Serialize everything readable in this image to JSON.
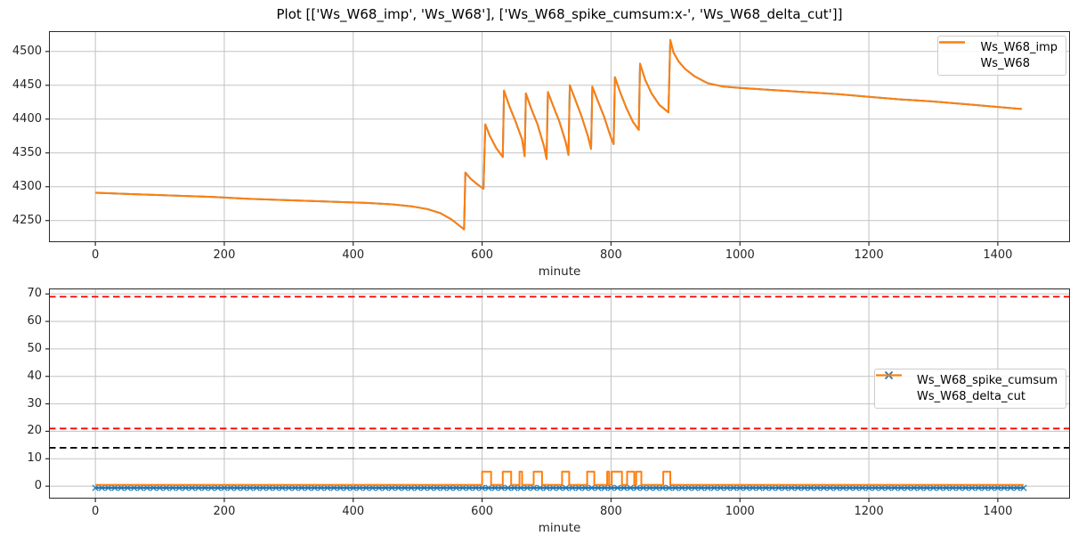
{
  "figure": {
    "title": "Plot [['Ws_W68_imp', 'Ws_W68'], ['Ws_W68_spike_cumsum:x-', 'Ws_W68_delta_cut']]"
  },
  "colors": {
    "blue": "#1f77b4",
    "orange": "#ff7f0e",
    "red": "#ff0000",
    "black": "#000000",
    "grid": "#c2c2c2",
    "spine": "#2a2a2a"
  },
  "chart_data": [
    {
      "type": "line",
      "xlabel": "minute",
      "xlim": [
        -72,
        1512
      ],
      "ylim": [
        4218,
        4530
      ],
      "xticks": [
        0,
        200,
        400,
        600,
        800,
        1000,
        1200,
        1400
      ],
      "yticks": [
        4250,
        4300,
        4350,
        4400,
        4450,
        4500
      ],
      "grid": true,
      "legend_position": "upper right",
      "points": {
        "main": {
          "x": [
            0,
            60,
            120,
            180,
            240,
            300,
            360,
            420,
            460,
            490,
            515,
            535,
            552,
            564,
            572,
            574,
            582,
            592,
            602,
            605,
            612,
            622,
            632,
            634,
            642,
            652,
            662,
            666,
            668,
            676,
            686,
            696,
            700,
            702,
            710,
            720,
            730,
            734,
            736,
            744,
            754,
            764,
            769,
            771,
            779,
            789,
            799,
            804,
            806,
            814,
            824,
            834,
            843,
            845,
            853,
            863,
            875,
            889,
            892,
            897,
            905,
            915,
            930,
            950,
            975,
            1000,
            1050,
            1100,
            1150,
            1200,
            1250,
            1300,
            1350,
            1400,
            1437
          ],
          "y": [
            4291,
            4289,
            4287,
            4285,
            4282,
            4280,
            4278,
            4276,
            4274,
            4271,
            4267,
            4261,
            4252,
            4243,
            4237,
            4321,
            4312,
            4304,
            4297,
            4392,
            4375,
            4357,
            4344,
            4442,
            4420,
            4396,
            4370,
            4345,
            4438,
            4416,
            4392,
            4360,
            4341,
            4440,
            4420,
            4396,
            4365,
            4347,
            4450,
            4430,
            4405,
            4375,
            4356,
            4448,
            4428,
            4404,
            4375,
            4363,
            4462,
            4440,
            4416,
            4396,
            4384,
            4482,
            4458,
            4438,
            4421,
            4410,
            4517,
            4498,
            4485,
            4474,
            4463,
            4453,
            4448,
            4446,
            4443,
            4440,
            4437,
            4433,
            4429,
            4426,
            4422,
            4418,
            4415
          ]
        }
      },
      "series": [
        {
          "name": "Ws_W68_imp",
          "color": "#1f77b4",
          "kind": "points",
          "points_ref": "main"
        },
        {
          "name": "Ws_W68",
          "color": "#ff7f0e",
          "kind": "points",
          "points_ref": "main"
        }
      ]
    },
    {
      "type": "line",
      "xlabel": "minute",
      "xlim": [
        -72,
        1512
      ],
      "ylim": [
        -4.5,
        72
      ],
      "xticks": [
        0,
        200,
        400,
        600,
        800,
        1000,
        1200,
        1400
      ],
      "yticks": [
        0,
        10,
        20,
        30,
        40,
        50,
        60,
        70
      ],
      "grid": true,
      "legend_position": "center right",
      "thresholds": [
        {
          "y": 69,
          "color": "#ff0000",
          "style": "dashed"
        },
        {
          "y": 21,
          "color": "#ff0000",
          "style": "dashed"
        },
        {
          "y": 14,
          "color": "#000000",
          "style": "dashed"
        }
      ],
      "series": [
        {
          "name": "Ws_W68_spike_cumsum",
          "color": "#1f77b4",
          "kind": "constant-x-marker",
          "value": -0.6,
          "x_start": 0,
          "x_end": 1440,
          "marker_interval": 10
        },
        {
          "name": "Ws_W68_delta_cut",
          "color": "#ff7f0e",
          "kind": "pulse",
          "baseline": 0.5,
          "pulse_high": 5.3,
          "x_start": 0,
          "x_end": 1440,
          "pulses": [
            [
              600,
              614
            ],
            [
              632,
              645
            ],
            [
              658,
              662
            ],
            [
              680,
              693
            ],
            [
              724,
              735
            ],
            [
              763,
              774
            ],
            [
              794,
              797
            ],
            [
              801,
              817
            ],
            [
              825,
              836
            ],
            [
              839,
              847
            ],
            [
              881,
              892
            ]
          ]
        }
      ]
    }
  ]
}
